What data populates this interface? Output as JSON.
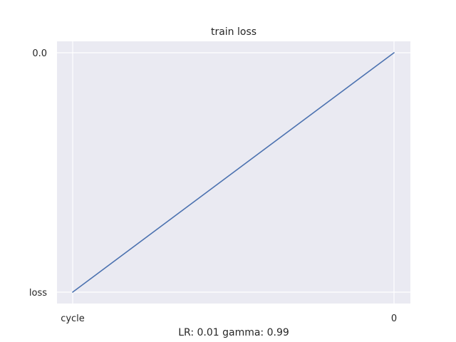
{
  "chart_data": {
    "type": "line",
    "title": "train loss",
    "xlabel": "LR: 0.01 gamma: 0.99",
    "ylabel": "",
    "x_axis": {
      "kind": "categorical",
      "categories": [
        "cycle",
        "0"
      ]
    },
    "y_axis": {
      "kind": "categorical",
      "categories": [
        "loss",
        "0.0"
      ]
    },
    "series": [
      {
        "x": [
          "cycle",
          "0"
        ],
        "y": [
          "loss",
          "0.0"
        ],
        "color": "#4c72b0"
      }
    ],
    "grid": true,
    "legend": "none",
    "style": {
      "background": "#eaeaf2",
      "grid_color": "#ffffff"
    }
  }
}
